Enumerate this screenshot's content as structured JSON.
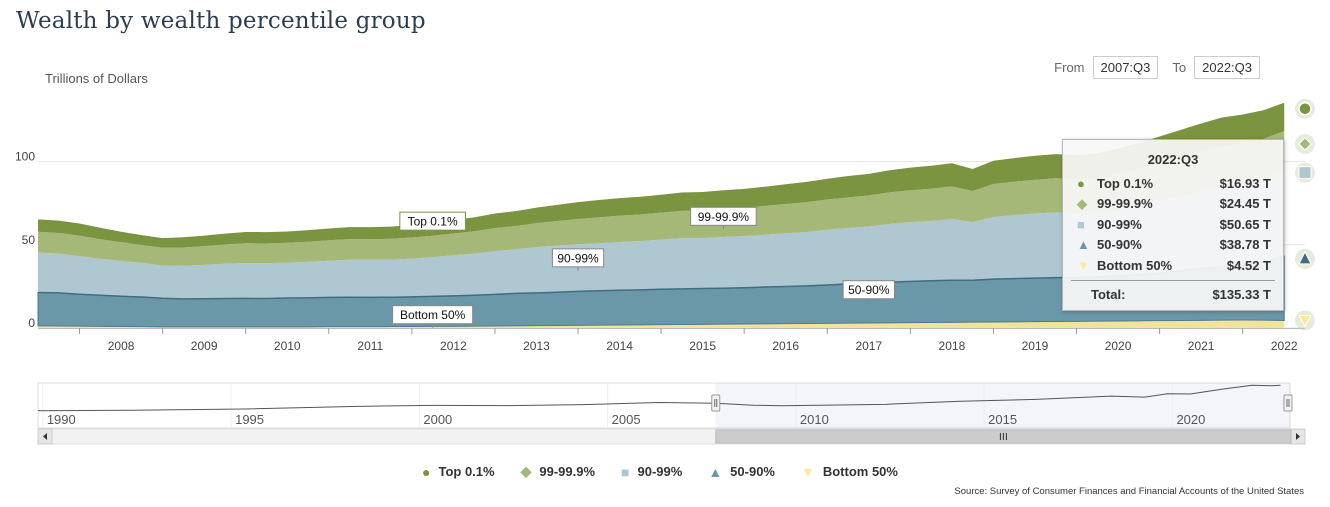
{
  "title": "Wealth by wealth percentile group",
  "units_label": "Trillions of Dollars",
  "range": {
    "from_label": "From",
    "from_value": "2007:Q3",
    "to_label": "To",
    "to_value": "2022:Q3"
  },
  "colors": {
    "top01": "#7b943f",
    "p999": "#a5b878",
    "p9099": "#afc7d1",
    "p5090": "#6b98a8",
    "bottom50": "#f2e39a",
    "bottom50_marker": "#fde8a0"
  },
  "chart_data": {
    "type": "area",
    "stacked": true,
    "title": "Wealth by wealth percentile group",
    "ylabel": "Trillions of Dollars",
    "ylim": [
      0,
      140
    ],
    "yticks": [
      0,
      50,
      100
    ],
    "x_range": [
      2007.5,
      2022.75
    ],
    "xticks": [
      "2008",
      "2009",
      "2010",
      "2011",
      "2012",
      "2013",
      "2014",
      "2015",
      "2016",
      "2017",
      "2018",
      "2019",
      "2020",
      "2021",
      "2022"
    ],
    "x": [
      2007.5,
      2007.75,
      2008.0,
      2008.25,
      2008.5,
      2008.75,
      2009.0,
      2009.25,
      2009.5,
      2009.75,
      2010.0,
      2010.25,
      2010.5,
      2010.75,
      2011.0,
      2011.25,
      2011.5,
      2011.75,
      2012.0,
      2012.25,
      2012.5,
      2012.75,
      2013.0,
      2013.25,
      2013.5,
      2013.75,
      2014.0,
      2014.25,
      2014.5,
      2014.75,
      2015.0,
      2015.25,
      2015.5,
      2015.75,
      2016.0,
      2016.25,
      2016.5,
      2016.75,
      2017.0,
      2017.25,
      2017.5,
      2017.75,
      2018.0,
      2018.25,
      2018.5,
      2018.75,
      2019.0,
      2019.25,
      2019.5,
      2019.75,
      2020.0,
      2020.25,
      2020.5,
      2020.75,
      2021.0,
      2021.25,
      2021.5,
      2021.75,
      2022.0,
      2022.25,
      2022.5
    ],
    "series": [
      {
        "name": "Bottom 50%",
        "values": [
          1.3,
          1.2,
          1.1,
          1.0,
          0.9,
          0.8,
          0.7,
          0.7,
          0.7,
          0.7,
          0.7,
          0.7,
          0.7,
          0.7,
          0.8,
          0.8,
          0.8,
          0.9,
          0.9,
          1.0,
          1.0,
          1.1,
          1.2,
          1.3,
          1.4,
          1.5,
          1.6,
          1.7,
          1.8,
          1.9,
          2.0,
          2.1,
          2.2,
          2.3,
          2.4,
          2.5,
          2.6,
          2.7,
          2.8,
          2.9,
          3.0,
          3.1,
          3.2,
          3.3,
          3.4,
          3.5,
          3.6,
          3.7,
          3.8,
          3.9,
          4.0,
          4.1,
          4.2,
          4.3,
          4.4,
          4.5,
          4.6,
          4.7,
          4.8,
          4.7,
          4.52
        ]
      },
      {
        "name": "50-90%",
        "values": [
          20.0,
          19.9,
          19.2,
          18.7,
          18.2,
          17.8,
          17.2,
          16.8,
          16.9,
          17.0,
          17.1,
          17.0,
          17.3,
          17.4,
          17.6,
          17.7,
          17.6,
          17.6,
          17.8,
          18.0,
          18.3,
          18.6,
          19.0,
          19.5,
          19.7,
          20.0,
          20.4,
          20.7,
          20.9,
          21.0,
          21.3,
          21.4,
          21.5,
          21.6,
          21.8,
          22.1,
          22.3,
          22.6,
          23.0,
          23.6,
          24.0,
          24.4,
          24.8,
          25.1,
          25.3,
          25.2,
          25.8,
          26.0,
          26.2,
          26.4,
          26.4,
          26.5,
          27.1,
          27.8,
          28.6,
          29.8,
          31.0,
          32.2,
          33.5,
          35.0,
          38.78
        ]
      },
      {
        "name": "90-99%",
        "values": [
          24.0,
          23.6,
          22.9,
          21.8,
          21.2,
          20.5,
          19.6,
          19.9,
          20.3,
          20.9,
          21.2,
          21.2,
          21.3,
          21.6,
          22.0,
          22.5,
          22.6,
          22.6,
          23.0,
          23.6,
          24.4,
          25.0,
          26.0,
          26.5,
          27.5,
          28.0,
          28.3,
          28.5,
          29.0,
          29.3,
          29.8,
          30.5,
          30.3,
          30.8,
          31.0,
          31.4,
          32.0,
          32.4,
          33.2,
          33.6,
          34.0,
          35.0,
          35.6,
          35.9,
          36.8,
          35.0,
          37.3,
          38.2,
          38.8,
          39.2,
          38.5,
          38.8,
          40.0,
          41.6,
          43.5,
          45.0,
          46.5,
          47.9,
          47.9,
          49.0,
          50.65
        ]
      },
      {
        "name": "99-99.9%",
        "values": [
          12.5,
          12.4,
          12.3,
          11.8,
          11.2,
          10.8,
          10.7,
          11.0,
          11.3,
          11.6,
          11.9,
          11.9,
          11.9,
          12.1,
          12.3,
          12.4,
          12.4,
          12.5,
          12.7,
          12.8,
          13.1,
          13.4,
          13.8,
          14.0,
          14.4,
          14.8,
          15.2,
          15.6,
          15.8,
          16.0,
          16.2,
          16.4,
          16.6,
          16.8,
          17.0,
          17.3,
          17.6,
          17.9,
          18.2,
          18.4,
          18.6,
          19.0,
          19.2,
          19.4,
          19.6,
          18.6,
          19.8,
          20.0,
          20.3,
          20.5,
          20.4,
          20.8,
          21.4,
          22.0,
          22.6,
          23.2,
          23.8,
          24.4,
          24.7,
          24.9,
          24.45
        ]
      },
      {
        "name": "Top 0.1%",
        "values": [
          7.5,
          7.4,
          7.3,
          6.9,
          6.3,
          5.9,
          5.8,
          6.1,
          6.3,
          6.5,
          6.8,
          6.8,
          6.8,
          7.0,
          7.1,
          7.2,
          7.2,
          7.3,
          7.6,
          7.8,
          8.1,
          8.4,
          8.8,
          8.9,
          9.3,
          9.7,
          10.1,
          10.4,
          10.5,
          10.7,
          10.8,
          11.0,
          11.1,
          11.3,
          11.4,
          11.6,
          11.9,
          12.2,
          12.5,
          12.8,
          13.0,
          13.3,
          13.6,
          13.8,
          13.9,
          13.2,
          14.0,
          14.2,
          14.4,
          14.5,
          14.5,
          14.8,
          15.2,
          15.6,
          16.0,
          16.5,
          17.0,
          17.3,
          17.4,
          17.2,
          16.93
        ]
      }
    ],
    "annotations": [
      {
        "text": "Top 0.1%",
        "x": 2012.25,
        "series": "Top 0.1%"
      },
      {
        "text": "99-99.9%",
        "x": 2015.75,
        "series": "99-99.9%"
      },
      {
        "text": "90-99%",
        "x": 2014.0,
        "series": "90-99%"
      },
      {
        "text": "50-90%",
        "x": 2017.5,
        "series": "50-90%"
      },
      {
        "text": "Bottom 50%",
        "x": 2012.25,
        "series": "Bottom 50%"
      }
    ],
    "navigator": {
      "x_range": [
        1989.5,
        2022.75
      ],
      "ticks": [
        "1990",
        "1995",
        "2000",
        "2005",
        "2010",
        "2015",
        "2020"
      ],
      "selection": [
        "2007:Q3",
        "2022:Q3"
      ],
      "x": [
        1989.5,
        1992,
        1995,
        1998,
        2000,
        2002,
        2004,
        2006,
        2007.5,
        2008.5,
        2009.25,
        2010,
        2012,
        2014,
        2016,
        2018,
        2018.9,
        2019.5,
        2020.1,
        2021,
        2021.75,
        2022.25,
        2022.5
      ],
      "values": [
        36,
        38,
        43,
        53,
        57,
        56,
        60,
        68,
        65.3,
        57.5,
        55.3,
        57,
        61,
        73,
        80,
        93,
        89,
        102,
        101,
        121,
        135,
        133,
        135.33
      ]
    }
  },
  "tooltip": {
    "title": "2022:Q3",
    "rows": [
      {
        "symbol": "●",
        "color_key": "top01",
        "name": "Top 0.1%",
        "value": "$16.93 T"
      },
      {
        "symbol": "◆",
        "color_key": "p999",
        "name": "99-99.9%",
        "value": "$24.45 T"
      },
      {
        "symbol": "■",
        "color_key": "p9099",
        "name": "90-99%",
        "value": "$50.65 T"
      },
      {
        "symbol": "▲",
        "color_key": "p5090",
        "name": "50-90%",
        "value": "$38.78 T"
      },
      {
        "symbol": "▼",
        "color_key": "bottom50_marker",
        "name": "Bottom 50%",
        "value": "$4.52 T"
      }
    ],
    "total_label": "Total:",
    "total_value": "$135.33 T"
  },
  "legend": [
    {
      "symbol": "●",
      "color_key": "top01",
      "label": "Top 0.1%"
    },
    {
      "symbol": "◆",
      "color_key": "p999",
      "label": "99-99.9%"
    },
    {
      "symbol": "■",
      "color_key": "p9099",
      "label": "90-99%"
    },
    {
      "symbol": "▲",
      "color_key": "p5090",
      "label": "50-90%"
    },
    {
      "symbol": "▼",
      "color_key": "bottom50_marker",
      "label": "Bottom 50%"
    }
  ],
  "source": "Source: Survey of Consumer Finances and Financial Accounts of the United States"
}
